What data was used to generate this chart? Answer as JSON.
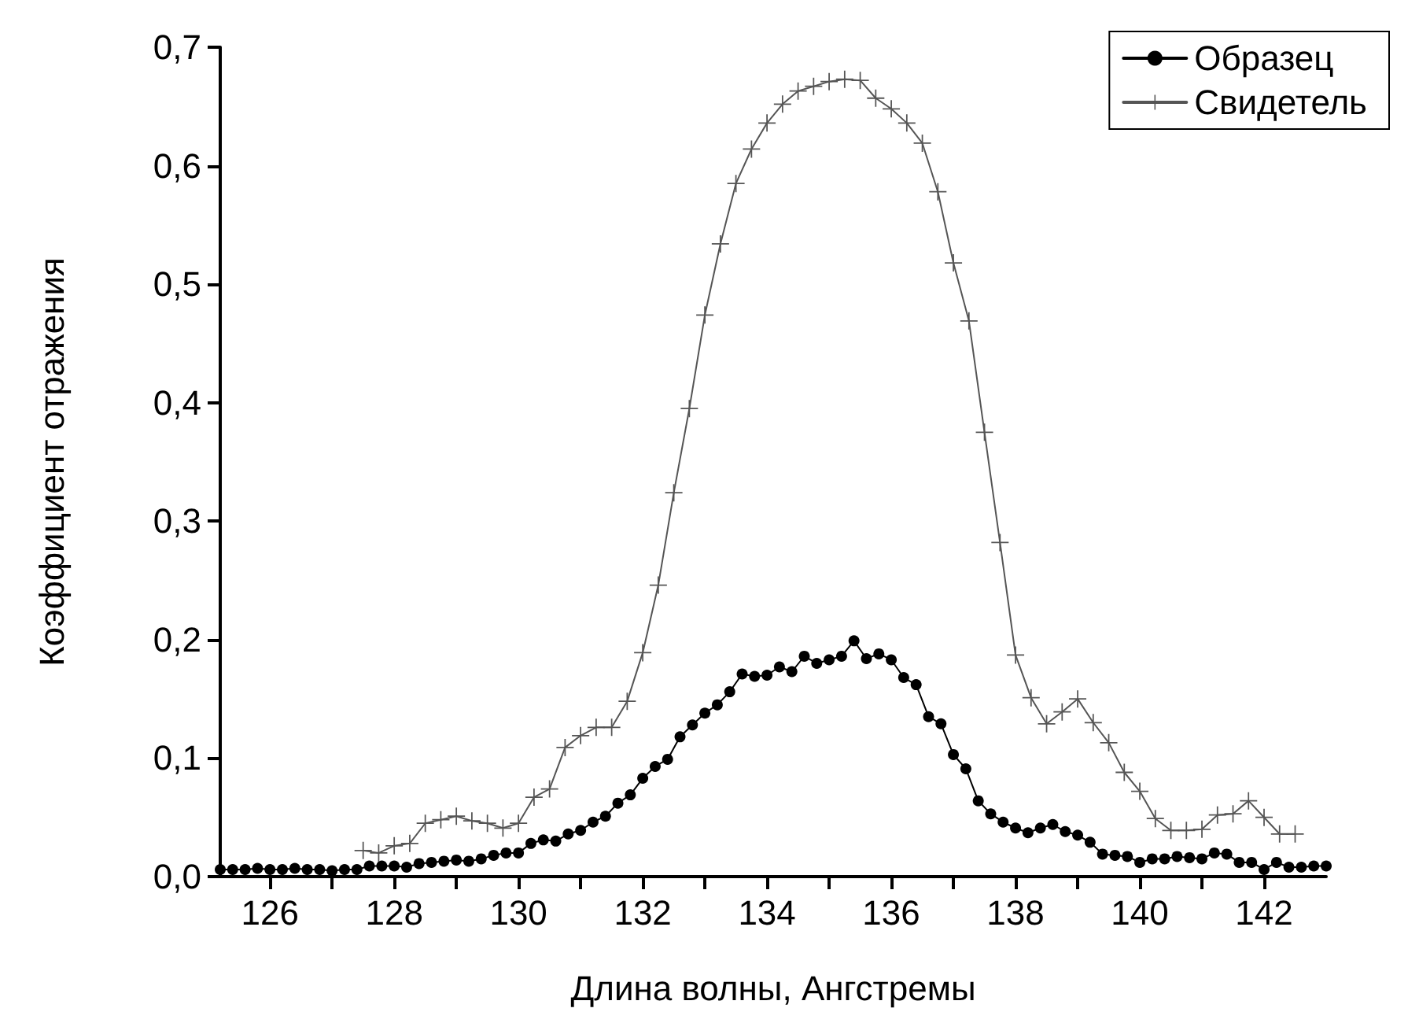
{
  "chart_data": {
    "type": "line",
    "xlabel": "Длина волны, Ангстремы",
    "ylabel": "Коэффициент отражения",
    "xlim": [
      125.2,
      143.0
    ],
    "ylim": [
      0,
      0.7
    ],
    "xticks": [
      126,
      {
        "value": 127,
        "label": null
      },
      128,
      {
        "value": 129,
        "label": null
      },
      130,
      {
        "value": 131,
        "label": null
      },
      132,
      {
        "value": 133,
        "label": null
      },
      134,
      {
        "value": 135,
        "label": null
      },
      136,
      {
        "value": 137,
        "label": null
      },
      138,
      {
        "value": 139,
        "label": null
      },
      140,
      {
        "value": 141,
        "label": null
      },
      142
    ],
    "yticks": [
      {
        "value": 0,
        "label": "0,0"
      },
      {
        "value": 0.1,
        "label": "0,1"
      },
      {
        "value": 0.2,
        "label": "0,2"
      },
      {
        "value": 0.3,
        "label": "0,3"
      },
      {
        "value": 0.4,
        "label": "0,4"
      },
      {
        "value": 0.5,
        "label": "0,5"
      },
      {
        "value": 0.6,
        "label": "0,6"
      },
      {
        "value": 0.7,
        "label": "0,7"
      }
    ],
    "grid": false,
    "legend": "top right",
    "line_style": "solid",
    "series": [
      {
        "name": "Образец",
        "color": "#000000",
        "marker": "circle",
        "x": [
          125.2,
          125.4,
          125.6,
          125.8,
          126.0,
          126.2,
          126.4,
          126.6,
          126.8,
          127.0,
          127.2,
          127.4,
          127.6,
          127.8,
          128.0,
          128.2,
          128.4,
          128.6,
          128.8,
          129.0,
          129.2,
          129.4,
          129.6,
          129.8,
          130.0,
          130.2,
          130.4,
          130.6,
          130.8,
          131.0,
          131.2,
          131.4,
          131.6,
          131.8,
          132.0,
          132.2,
          132.4,
          132.6,
          132.8,
          133.0,
          133.2,
          133.4,
          133.6,
          133.8,
          134.0,
          134.2,
          134.4,
          134.6,
          134.8,
          135.0,
          135.2,
          135.4,
          135.6,
          135.8,
          136.0,
          136.2,
          136.4,
          136.6,
          136.8,
          137.0,
          137.2,
          137.4,
          137.6,
          137.8,
          138.0,
          138.2,
          138.4,
          138.6,
          138.8,
          139.0,
          139.2,
          139.4,
          139.6,
          139.8,
          140.0,
          140.2,
          140.4,
          140.6,
          140.8,
          141.0,
          141.2,
          141.4,
          141.6,
          141.8,
          142.0,
          142.2,
          142.4,
          142.6,
          142.8,
          143.0
        ],
        "values": [
          0.006,
          0.006,
          0.006,
          0.007,
          0.006,
          0.006,
          0.007,
          0.006,
          0.006,
          0.005,
          0.006,
          0.006,
          0.009,
          0.009,
          0.009,
          0.008,
          0.011,
          0.012,
          0.013,
          0.014,
          0.013,
          0.015,
          0.018,
          0.02,
          0.02,
          0.028,
          0.031,
          0.03,
          0.036,
          0.039,
          0.046,
          0.051,
          0.062,
          0.069,
          0.083,
          0.093,
          0.099,
          0.118,
          0.128,
          0.138,
          0.145,
          0.156,
          0.171,
          0.169,
          0.17,
          0.177,
          0.173,
          0.186,
          0.18,
          0.183,
          0.186,
          0.199,
          0.184,
          0.188,
          0.183,
          0.168,
          0.162,
          0.135,
          0.129,
          0.103,
          0.091,
          0.064,
          0.053,
          0.046,
          0.041,
          0.037,
          0.041,
          0.044,
          0.038,
          0.035,
          0.029,
          0.019,
          0.018,
          0.017,
          0.012,
          0.015,
          0.015,
          0.017,
          0.016,
          0.015,
          0.02,
          0.019,
          0.012,
          0.012,
          0.006,
          0.012,
          0.008,
          0.008,
          0.009,
          0.009
        ]
      },
      {
        "name": "Свидетель",
        "color": "#555555",
        "marker": "cross",
        "x": [
          127.5,
          127.75,
          128.0,
          128.25,
          128.5,
          128.75,
          129.0,
          129.25,
          129.5,
          129.75,
          130.0,
          130.25,
          130.5,
          130.75,
          131.0,
          131.25,
          131.5,
          131.75,
          132.0,
          132.25,
          132.5,
          132.75,
          133.0,
          133.25,
          133.5,
          133.75,
          134.0,
          134.25,
          134.5,
          134.75,
          135.0,
          135.25,
          135.5,
          135.75,
          136.0,
          136.25,
          136.5,
          136.75,
          137.0,
          137.25,
          137.5,
          137.75,
          138.0,
          138.25,
          138.5,
          138.75,
          139.0,
          139.25,
          139.5,
          139.75,
          140.0,
          140.25,
          140.5,
          140.75,
          141.0,
          141.25,
          141.5,
          141.75,
          142.0,
          142.25,
          142.5
        ],
        "values": [
          0.022,
          0.02,
          0.026,
          0.028,
          0.045,
          0.048,
          0.051,
          0.047,
          0.045,
          0.041,
          0.045,
          0.067,
          0.074,
          0.109,
          0.119,
          0.126,
          0.126,
          0.148,
          0.189,
          0.246,
          0.324,
          0.395,
          0.474,
          0.534,
          0.585,
          0.614,
          0.636,
          0.652,
          0.663,
          0.667,
          0.671,
          0.673,
          0.672,
          0.657,
          0.648,
          0.636,
          0.619,
          0.578,
          0.518,
          0.469,
          0.375,
          0.282,
          0.187,
          0.151,
          0.129,
          0.139,
          0.15,
          0.13,
          0.113,
          0.088,
          0.072,
          0.049,
          0.039,
          0.039,
          0.04,
          0.052,
          0.053,
          0.064,
          0.05,
          0.036,
          0.036
        ]
      }
    ]
  }
}
